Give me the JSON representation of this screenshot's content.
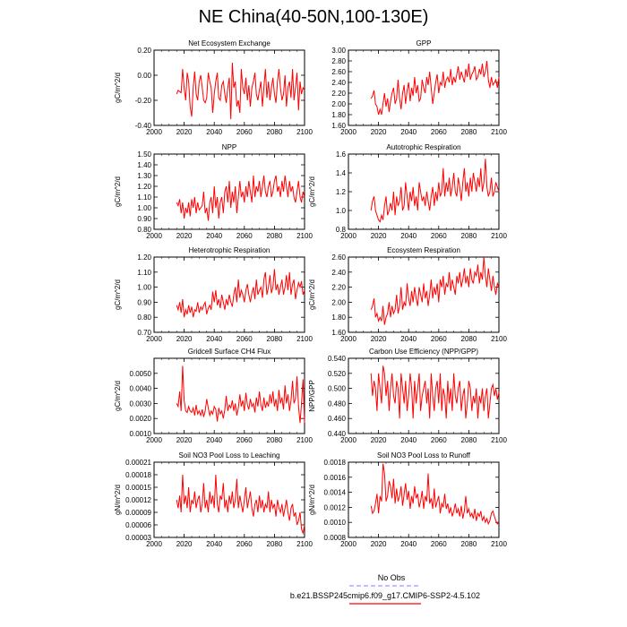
{
  "title": "NE China(40-50N,100-130E)",
  "line_color": "#ff0000",
  "obs_color": "#9999ff",
  "legend": [
    {
      "label": "No Obs",
      "style": "dashed",
      "color": "#9999ff"
    },
    {
      "label": "b.e21.BSSP245cmip6.f09_g17.CMIP6-SSP2-4.5.102",
      "style": "solid",
      "color": "#ff0000"
    }
  ],
  "chart_data": [
    {
      "type": "line",
      "title": "Net Ecosystem Exchange",
      "ylabel": "gC/m^2/d",
      "xlim": [
        2000,
        2100
      ],
      "ylim": [
        -0.4,
        0.2
      ],
      "xticks": [
        2000,
        2020,
        2040,
        2060,
        2080,
        2100
      ],
      "yticks": [
        -0.4,
        -0.2,
        0.0,
        0.2
      ],
      "ytick_labels": [
        "-0.40",
        "-0.20",
        "0.00",
        "0.20"
      ],
      "x_start": 2015,
      "values": [
        -0.15,
        -0.12,
        -0.13,
        -0.14,
        0.05,
        -0.1,
        -0.2,
        0.02,
        -0.05,
        -0.25,
        -0.33,
        -0.1,
        0.03,
        -0.15,
        -0.2,
        -0.05,
        0.0,
        -0.1,
        -0.2,
        -0.22,
        -0.18,
        0.02,
        -0.05,
        -0.1,
        -0.3,
        -0.15,
        -0.05,
        0.02,
        -0.18,
        -0.2,
        -0.08,
        -0.05,
        -0.15,
        -0.22,
        -0.1,
        -0.02,
        -0.35,
        0.1,
        -0.1,
        -0.05,
        -0.25,
        -0.2,
        -0.3,
        0.05,
        -0.1,
        -0.15,
        -0.02,
        -0.2,
        -0.08,
        -0.25,
        -0.1,
        -0.05,
        0.02,
        -0.15,
        -0.2,
        -0.12,
        -0.05,
        -0.25,
        -0.1,
        0.05,
        -0.18,
        -0.05,
        -0.2,
        -0.1,
        -0.02,
        -0.15,
        -0.22,
        -0.05,
        0.05,
        -0.1,
        -0.2,
        -0.15,
        0.0,
        -0.25,
        -0.1,
        -0.05,
        -0.18,
        0.05,
        -0.2,
        -0.1,
        0.02,
        -0.28,
        -0.05,
        -0.15,
        -0.1,
        -0.12
      ]
    },
    {
      "type": "line",
      "title": "GPP",
      "ylabel": "",
      "xlim": [
        2000,
        2100
      ],
      "ylim": [
        1.6,
        3.0
      ],
      "xticks": [
        2000,
        2020,
        2040,
        2060,
        2080,
        2100
      ],
      "yticks": [
        1.6,
        1.8,
        2.0,
        2.2,
        2.4,
        2.6,
        2.8,
        3.0
      ],
      "ytick_labels": [
        "1.60",
        "1.80",
        "2.00",
        "2.20",
        "2.40",
        "2.60",
        "2.80",
        "3.00"
      ],
      "x_start": 2015,
      "values": [
        2.1,
        2.15,
        2.25,
        2.0,
        1.95,
        1.8,
        1.9,
        1.8,
        2.0,
        2.2,
        1.95,
        2.1,
        1.85,
        2.05,
        2.2,
        2.3,
        2.0,
        2.1,
        2.45,
        2.1,
        1.9,
        2.2,
        2.35,
        2.0,
        2.25,
        2.4,
        2.05,
        2.3,
        2.15,
        2.5,
        2.2,
        2.35,
        2.05,
        2.1,
        2.45,
        2.3,
        2.2,
        2.5,
        2.35,
        2.6,
        2.3,
        2.0,
        2.2,
        2.4,
        2.55,
        2.2,
        2.4,
        2.35,
        2.6,
        2.3,
        2.45,
        2.5,
        2.4,
        2.65,
        2.35,
        2.5,
        2.4,
        2.55,
        2.7,
        2.45,
        2.6,
        2.5,
        2.4,
        2.65,
        2.5,
        2.75,
        2.45,
        2.55,
        2.6,
        2.7,
        2.45,
        2.5,
        2.65,
        2.55,
        2.75,
        2.5,
        2.6,
        2.8,
        2.45,
        2.3,
        2.5,
        2.35,
        2.4,
        2.45,
        2.3,
        2.5
      ]
    },
    {
      "type": "line",
      "title": "NPP",
      "ylabel": "gC/m^2/d",
      "xlim": [
        2000,
        2100
      ],
      "ylim": [
        0.8,
        1.5
      ],
      "xticks": [
        2000,
        2020,
        2040,
        2060,
        2080,
        2100
      ],
      "yticks": [
        0.8,
        0.9,
        1.0,
        1.1,
        1.2,
        1.3,
        1.4,
        1.5
      ],
      "ytick_labels": [
        "0.80",
        "0.90",
        "1.00",
        "1.10",
        "1.20",
        "1.30",
        "1.40",
        "1.50"
      ],
      "x_start": 2015,
      "values": [
        1.05,
        1.02,
        1.08,
        0.95,
        1.05,
        0.9,
        1.0,
        0.95,
        1.05,
        0.92,
        1.08,
        1.0,
        1.1,
        0.95,
        1.05,
        0.98,
        1.0,
        1.02,
        1.15,
        0.95,
        1.0,
        0.88,
        1.05,
        1.1,
        0.95,
        1.2,
        1.0,
        1.1,
        0.9,
        1.05,
        1.1,
        0.95,
        1.15,
        1.2,
        1.05,
        1.25,
        1.0,
        1.15,
        1.05,
        1.2,
        0.95,
        1.1,
        1.25,
        1.1,
        1.15,
        1.05,
        1.2,
        1.1,
        1.25,
        1.15,
        1.05,
        1.3,
        1.1,
        1.2,
        1.15,
        1.25,
        1.1,
        1.2,
        1.3,
        1.15,
        1.1,
        1.2,
        1.25,
        1.1,
        1.15,
        1.25,
        1.3,
        1.15,
        1.2,
        1.1,
        1.25,
        1.15,
        1.3,
        1.2,
        1.1,
        1.25,
        1.15,
        1.2,
        1.1,
        1.05,
        1.15,
        1.25,
        1.1,
        1.05,
        1.15,
        1.1
      ]
    },
    {
      "type": "line",
      "title": "Autotrophic Respiration",
      "ylabel": "gC/m^2/d",
      "xlim": [
        2000,
        2100
      ],
      "ylim": [
        0.8,
        1.6
      ],
      "xticks": [
        2000,
        2020,
        2040,
        2060,
        2080,
        2100
      ],
      "yticks": [
        0.8,
        1.0,
        1.2,
        1.4,
        1.6
      ],
      "ytick_labels": [
        "0.8",
        "1.0",
        "1.2",
        "1.4",
        "1.6"
      ],
      "x_start": 2015,
      "values": [
        1.0,
        1.1,
        1.15,
        1.0,
        0.95,
        0.9,
        0.88,
        0.95,
        0.9,
        1.05,
        1.15,
        0.95,
        1.0,
        1.08,
        1.0,
        1.2,
        0.95,
        1.15,
        1.05,
        1.1,
        1.25,
        1.0,
        1.05,
        1.3,
        1.15,
        1.0,
        1.2,
        1.1,
        1.25,
        1.05,
        1.15,
        1.0,
        1.3,
        1.2,
        1.1,
        1.15,
        1.05,
        1.2,
        1.1,
        1.0,
        1.15,
        1.25,
        1.05,
        1.2,
        1.1,
        1.3,
        1.15,
        1.2,
        1.45,
        1.15,
        1.3,
        1.2,
        1.35,
        1.15,
        1.25,
        1.4,
        1.2,
        1.15,
        1.35,
        1.25,
        1.1,
        1.3,
        1.45,
        1.2,
        1.3,
        1.15,
        1.35,
        1.2,
        1.4,
        1.3,
        1.2,
        1.35,
        1.25,
        1.45,
        1.2,
        1.3,
        1.55,
        1.25,
        1.15,
        1.2,
        1.35,
        1.15,
        1.2,
        1.3,
        1.25,
        1.2
      ]
    },
    {
      "type": "line",
      "title": "Heterotrophic Respiration",
      "ylabel": "gC/m^2/d",
      "xlim": [
        2000,
        2100
      ],
      "ylim": [
        0.7,
        1.2
      ],
      "xticks": [
        2000,
        2020,
        2040,
        2060,
        2080,
        2100
      ],
      "yticks": [
        0.7,
        0.8,
        0.9,
        1.0,
        1.1,
        1.2
      ],
      "ytick_labels": [
        "0.70",
        "0.80",
        "0.90",
        "1.00",
        "1.10",
        "1.20"
      ],
      "x_start": 2015,
      "values": [
        0.88,
        0.85,
        0.9,
        0.83,
        0.92,
        0.8,
        0.85,
        0.82,
        0.88,
        0.83,
        0.87,
        0.8,
        0.85,
        0.84,
        0.9,
        0.83,
        0.87,
        0.85,
        0.88,
        0.9,
        0.82,
        0.86,
        0.88,
        0.85,
        0.97,
        0.9,
        0.98,
        0.88,
        0.92,
        0.86,
        0.95,
        0.9,
        0.85,
        0.92,
        0.88,
        0.95,
        0.9,
        0.87,
        0.95,
        1.0,
        0.9,
        1.05,
        0.93,
        0.98,
        0.95,
        0.9,
        0.98,
        1.02,
        0.95,
        0.9,
        0.96,
        1.0,
        0.92,
        1.05,
        0.95,
        0.98,
        1.0,
        0.93,
        1.05,
        1.1,
        0.95,
        1.0,
        1.08,
        0.96,
        1.0,
        1.12,
        0.98,
        1.02,
        0.95,
        1.0,
        1.05,
        0.95,
        1.0,
        1.08,
        0.98,
        1.1,
        0.95,
        1.02,
        1.05,
        0.92,
        0.98,
        1.03,
        1.0,
        1.04,
        0.95,
        0.98
      ]
    },
    {
      "type": "line",
      "title": "Ecosystem Respiration",
      "ylabel": "gC/m^2/d",
      "xlim": [
        2000,
        2100
      ],
      "ylim": [
        1.6,
        2.6
      ],
      "xticks": [
        2000,
        2020,
        2040,
        2060,
        2080,
        2100
      ],
      "yticks": [
        1.6,
        1.8,
        2.0,
        2.2,
        2.4,
        2.6
      ],
      "ytick_labels": [
        "1.60",
        "1.80",
        "2.00",
        "2.20",
        "2.40",
        "2.60"
      ],
      "x_start": 2015,
      "values": [
        1.9,
        1.95,
        2.05,
        1.8,
        1.85,
        1.75,
        1.8,
        1.75,
        1.95,
        1.7,
        1.8,
        1.85,
        2.0,
        1.8,
        1.95,
        1.85,
        1.9,
        2.1,
        1.85,
        1.95,
        2.2,
        1.9,
        2.0,
        1.95,
        2.25,
        2.05,
        1.95,
        2.15,
        2.0,
        2.2,
        2.05,
        1.95,
        2.2,
        2.1,
        2.0,
        2.25,
        2.05,
        2.15,
        1.95,
        2.1,
        2.3,
        2.05,
        2.2,
        2.1,
        2.25,
        2.0,
        2.3,
        2.2,
        2.35,
        2.1,
        2.25,
        2.2,
        2.4,
        2.15,
        2.3,
        2.2,
        2.1,
        2.35,
        2.25,
        2.4,
        2.2,
        2.3,
        2.45,
        2.25,
        2.35,
        2.2,
        2.45,
        2.3,
        2.25,
        2.4,
        2.35,
        2.5,
        2.25,
        2.4,
        2.3,
        2.6,
        2.35,
        2.2,
        2.45,
        2.3,
        2.15,
        2.35,
        2.2,
        2.1,
        2.25,
        2.2
      ]
    },
    {
      "type": "line",
      "title": "Gridcell Surface CH4 Flux",
      "ylabel": "gC/m^2/d",
      "xlim": [
        2000,
        2100
      ],
      "ylim": [
        0.001,
        0.006
      ],
      "xticks": [
        2000,
        2020,
        2040,
        2060,
        2080,
        2100
      ],
      "yticks": [
        0.001,
        0.002,
        0.003,
        0.004,
        0.005
      ],
      "ytick_labels": [
        "0.0010",
        "0.0020",
        "0.0030",
        "0.0040",
        "0.0050"
      ],
      "x_start": 2015,
      "values": [
        0.003,
        0.0028,
        0.0038,
        0.0025,
        0.0055,
        0.0032,
        0.0025,
        0.0024,
        0.0028,
        0.0025,
        0.0024,
        0.0027,
        0.0022,
        0.0029,
        0.0023,
        0.0025,
        0.0022,
        0.0026,
        0.0021,
        0.0025,
        0.0033,
        0.0027,
        0.0022,
        0.0025,
        0.0023,
        0.0028,
        0.0026,
        0.0018,
        0.0027,
        0.0023,
        0.0025,
        0.002,
        0.0026,
        0.0035,
        0.0025,
        0.0029,
        0.0027,
        0.0032,
        0.0025,
        0.003,
        0.0022,
        0.0027,
        0.0036,
        0.0028,
        0.0032,
        0.0025,
        0.0037,
        0.0029,
        0.0026,
        0.0033,
        0.0028,
        0.003,
        0.0024,
        0.0034,
        0.0028,
        0.0038,
        0.0029,
        0.0025,
        0.0034,
        0.0027,
        0.0031,
        0.0028,
        0.0036,
        0.003,
        0.0038,
        0.0028,
        0.0033,
        0.0025,
        0.0039,
        0.003,
        0.0034,
        0.0026,
        0.0042,
        0.003,
        0.0036,
        0.0025,
        0.0032,
        0.0045,
        0.003,
        0.0033,
        0.0048,
        0.0028,
        0.0017,
        0.003,
        0.0046,
        0.0017
      ]
    },
    {
      "type": "line",
      "title": "Carbon Use Efficiency (NPP/GPP)",
      "ylabel": "NPP/GPP",
      "xlim": [
        2000,
        2100
      ],
      "ylim": [
        0.44,
        0.54
      ],
      "xticks": [
        2000,
        2020,
        2040,
        2060,
        2080,
        2100
      ],
      "yticks": [
        0.44,
        0.46,
        0.48,
        0.5,
        0.52,
        0.54
      ],
      "ytick_labels": [
        "0.440",
        "0.460",
        "0.480",
        "0.500",
        "0.520",
        "0.540"
      ],
      "x_start": 2015,
      "values": [
        0.52,
        0.49,
        0.51,
        0.5,
        0.47,
        0.52,
        0.5,
        0.48,
        0.53,
        0.52,
        0.49,
        0.51,
        0.47,
        0.5,
        0.52,
        0.49,
        0.48,
        0.51,
        0.5,
        0.46,
        0.52,
        0.5,
        0.48,
        0.51,
        0.47,
        0.49,
        0.52,
        0.5,
        0.46,
        0.51,
        0.48,
        0.5,
        0.52,
        0.47,
        0.49,
        0.5,
        0.51,
        0.48,
        0.5,
        0.46,
        0.52,
        0.49,
        0.47,
        0.5,
        0.51,
        0.48,
        0.52,
        0.47,
        0.5,
        0.49,
        0.46,
        0.51,
        0.48,
        0.5,
        0.47,
        0.52,
        0.49,
        0.48,
        0.5,
        0.51,
        0.47,
        0.49,
        0.5,
        0.46,
        0.48,
        0.51,
        0.5,
        0.47,
        0.49,
        0.48,
        0.5,
        0.46,
        0.49,
        0.48,
        0.5,
        0.47,
        0.49,
        0.5,
        0.46,
        0.48,
        0.5,
        0.505,
        0.49,
        0.5,
        0.485,
        0.495
      ]
    },
    {
      "type": "line",
      "title": "Soil NO3 Pool Loss to Leaching",
      "ylabel": "gN/m^2/d",
      "xlim": [
        2000,
        2100
      ],
      "ylim": [
        3e-05,
        0.00021
      ],
      "xticks": [
        2000,
        2020,
        2040,
        2060,
        2080,
        2100
      ],
      "yticks": [
        3e-05,
        6e-05,
        9e-05,
        0.00012,
        0.00015,
        0.00018,
        0.00021
      ],
      "ytick_labels": [
        "0.00003",
        "0.00006",
        "0.00009",
        "0.00012",
        "0.00015",
        "0.00018",
        "0.00021"
      ],
      "x_start": 2015,
      "values": [
        0.00012,
        0.0001,
        0.00013,
        9e-05,
        0.00018,
        0.00011,
        0.00013,
        0.0001,
        0.00015,
        9e-05,
        0.00012,
        0.00011,
        0.00014,
        0.0001,
        0.00012,
        0.00013,
        9e-05,
        0.00011,
        0.00016,
        0.0001,
        0.00012,
        9e-05,
        0.00014,
        0.00011,
        0.00013,
        0.0001,
        0.00018,
        0.00011,
        9e-05,
        0.00013,
        0.00012,
        0.00016,
        0.0001,
        0.00012,
        9e-05,
        0.00013,
        0.00011,
        0.00014,
        0.0001,
        0.00012,
        0.00017,
        0.0001,
        0.00013,
        0.00011,
        9e-05,
        0.00012,
        0.00015,
        0.0001,
        0.00012,
        0.00014,
        0.0001,
        8e-05,
        0.00011,
        0.00012,
        9e-05,
        0.00013,
        0.0001,
        0.00012,
        9e-05,
        0.00011,
        0.0001,
        0.00014,
        9e-05,
        0.00012,
        0.0001,
        0.00011,
        8e-05,
        0.00012,
        0.0001,
        9e-05,
        0.00011,
        8e-05,
        0.0001,
        0.00012,
        9e-05,
        7e-05,
        0.0001,
        0.00011,
        8e-05,
        9e-05,
        6e-05,
        7e-05,
        9e-05,
        5e-05,
        4e-05,
        6e-05
      ]
    },
    {
      "type": "line",
      "title": "Soil NO3 Pool Loss to Runoff",
      "ylabel": "gN/m^2/d",
      "xlim": [
        2000,
        2100
      ],
      "ylim": [
        0.0008,
        0.0018
      ],
      "xticks": [
        2000,
        2020,
        2040,
        2060,
        2080,
        2100
      ],
      "yticks": [
        0.0008,
        0.001,
        0.0012,
        0.0014,
        0.0016,
        0.0018
      ],
      "ytick_labels": [
        "0.0008",
        "0.0010",
        "0.0012",
        "0.0014",
        "0.0016",
        "0.0018"
      ],
      "x_start": 2015,
      "values": [
        0.00122,
        0.00112,
        0.00115,
        0.00125,
        0.00138,
        0.00112,
        0.00135,
        0.00128,
        0.00178,
        0.00165,
        0.00128,
        0.00135,
        0.00155,
        0.00148,
        0.00132,
        0.00158,
        0.00125,
        0.00145,
        0.00128,
        0.00135,
        0.00148,
        0.00122,
        0.00138,
        0.00152,
        0.0013,
        0.00142,
        0.00118,
        0.00135,
        0.00125,
        0.00148,
        0.00132,
        0.00138,
        0.0012,
        0.00128,
        0.00142,
        0.00118,
        0.00135,
        0.00128,
        0.00165,
        0.00125,
        0.00132,
        0.00118,
        0.00145,
        0.0012,
        0.00128,
        0.00135,
        0.00112,
        0.00125,
        0.0012,
        0.00138,
        0.00118,
        0.00125,
        0.00112,
        0.0012,
        0.00108,
        0.00115,
        0.00125,
        0.00112,
        0.00118,
        0.00108,
        0.00122,
        0.00105,
        0.00115,
        0.00135,
        0.00112,
        0.00118,
        0.00108,
        0.00112,
        0.00105,
        0.00118,
        0.00102,
        0.00112,
        0.00108,
        0.00115,
        0.00102,
        0.00108,
        0.001,
        0.00105,
        0.00098,
        0.00102,
        0.00112,
        0.00115,
        0.00108,
        0.00102,
        0.00098,
        0.001
      ]
    }
  ]
}
